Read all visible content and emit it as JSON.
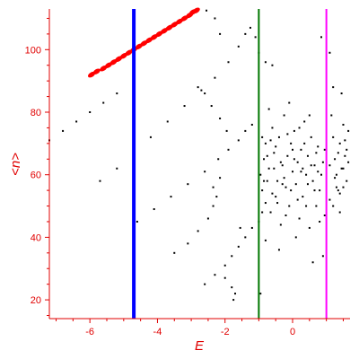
{
  "chart_data": {
    "type": "scatter",
    "xlabel": "E",
    "ylabel": "<n>",
    "xlim": [
      -7.2,
      1.7
    ],
    "ylim": [
      14,
      113
    ],
    "xticks": [
      -6,
      -4,
      -2,
      0
    ],
    "yticks": [
      20,
      40,
      60,
      80,
      100
    ],
    "grid": false,
    "vertical_lines": [
      {
        "x": -4.7,
        "color": "#0000ff"
      },
      {
        "x": -1.0,
        "color": "#007700"
      },
      {
        "x": 1.0,
        "color": "#ff00ff"
      }
    ],
    "series": [
      {
        "color": "#ff0000",
        "marker": "dense-band",
        "points": [
          [
            -5.95,
            92
          ],
          [
            -5.8,
            93
          ],
          [
            -5.6,
            94
          ],
          [
            -5.45,
            95
          ],
          [
            -5.3,
            96
          ],
          [
            -5.15,
            97
          ],
          [
            -5.0,
            98
          ],
          [
            -4.85,
            99
          ],
          [
            -4.7,
            100
          ],
          [
            -4.55,
            101
          ],
          [
            -4.4,
            102
          ],
          [
            -4.25,
            103
          ],
          [
            -4.1,
            104
          ],
          [
            -3.95,
            105
          ],
          [
            -3.8,
            106
          ],
          [
            -3.65,
            107
          ],
          [
            -3.5,
            108
          ],
          [
            -3.35,
            109
          ],
          [
            -3.2,
            110
          ],
          [
            -3.05,
            111
          ],
          [
            -2.95,
            112
          ],
          [
            -2.85,
            112.5
          ]
        ]
      },
      {
        "color": "#000000",
        "marker": "dot",
        "points": [
          [
            -7.2,
            71
          ],
          [
            -6.8,
            74
          ],
          [
            -6.4,
            77
          ],
          [
            -6.0,
            80
          ],
          [
            -5.6,
            83
          ],
          [
            -5.2,
            86
          ],
          [
            -2.55,
            112.5
          ],
          [
            -2.3,
            110
          ],
          [
            -2.15,
            105
          ],
          [
            -5.7,
            58
          ],
          [
            -5.2,
            62
          ],
          [
            -4.7,
            67
          ],
          [
            -4.2,
            72
          ],
          [
            -3.7,
            77
          ],
          [
            -3.2,
            82
          ],
          [
            -2.7,
            87
          ],
          [
            -2.3,
            91
          ],
          [
            -1.9,
            96
          ],
          [
            -1.6,
            101
          ],
          [
            -1.4,
            105
          ],
          [
            -1.25,
            107
          ],
          [
            -1.1,
            104
          ],
          [
            -1.0,
            99
          ],
          [
            -0.8,
            96
          ],
          [
            -0.6,
            95
          ],
          [
            -4.6,
            45
          ],
          [
            -4.1,
            49
          ],
          [
            -3.6,
            53
          ],
          [
            -3.1,
            57
          ],
          [
            -2.6,
            61
          ],
          [
            -2.2,
            65
          ],
          [
            -1.9,
            68
          ],
          [
            -1.6,
            71
          ],
          [
            -1.4,
            74
          ],
          [
            -1.2,
            76
          ],
          [
            -2.8,
            88
          ],
          [
            -2.6,
            86
          ],
          [
            -2.4,
            82
          ],
          [
            -2.15,
            78
          ],
          [
            -1.95,
            74
          ],
          [
            -3.5,
            35
          ],
          [
            -3.1,
            38
          ],
          [
            -2.8,
            42
          ],
          [
            -2.5,
            46
          ],
          [
            -2.35,
            50
          ],
          [
            -2.25,
            53
          ],
          [
            -2.35,
            56
          ],
          [
            -2.15,
            59
          ],
          [
            -2.6,
            25
          ],
          [
            -2.3,
            28
          ],
          [
            -2.0,
            31
          ],
          [
            -1.8,
            34
          ],
          [
            -1.6,
            37
          ],
          [
            -1.4,
            40
          ],
          [
            -1.2,
            43
          ],
          [
            -1.0,
            45
          ],
          [
            -0.9,
            48
          ],
          [
            -0.8,
            51
          ],
          [
            -2.0,
            27
          ],
          [
            -1.8,
            24
          ],
          [
            -1.7,
            22
          ],
          [
            -1.75,
            20
          ],
          [
            -1.55,
            43
          ],
          [
            -0.95,
            22
          ],
          [
            -0.95,
            60
          ],
          [
            -0.9,
            55
          ],
          [
            -0.85,
            65
          ],
          [
            -0.8,
            70
          ],
          [
            -0.75,
            58
          ],
          [
            -0.7,
            62
          ],
          [
            -0.65,
            48
          ],
          [
            -0.6,
            75
          ],
          [
            -0.55,
            67
          ],
          [
            -0.5,
            53
          ],
          [
            -0.45,
            58
          ],
          [
            -0.4,
            72
          ],
          [
            -0.35,
            44
          ],
          [
            -0.3,
            63
          ],
          [
            -0.25,
            79
          ],
          [
            -0.2,
            56
          ],
          [
            -0.15,
            66
          ],
          [
            -0.1,
            50
          ],
          [
            -0.05,
            70
          ],
          [
            0.0,
            61
          ],
          [
            0.05,
            74
          ],
          [
            0.1,
            57
          ],
          [
            0.15,
            64
          ],
          [
            0.2,
            46
          ],
          [
            0.25,
            68
          ],
          [
            0.3,
            53
          ],
          [
            0.35,
            77
          ],
          [
            0.4,
            60
          ],
          [
            0.45,
            66
          ],
          [
            0.5,
            43
          ],
          [
            0.55,
            72
          ],
          [
            0.6,
            58
          ],
          [
            0.65,
            63
          ],
          [
            0.7,
            50
          ],
          [
            0.75,
            69
          ],
          [
            0.8,
            55
          ],
          [
            0.85,
            104
          ],
          [
            0.9,
            64
          ],
          [
            0.95,
            47
          ],
          [
            -0.9,
            72
          ],
          [
            -0.8,
            39
          ],
          [
            -0.7,
            81
          ],
          [
            -0.6,
            54
          ],
          [
            -0.5,
            69
          ],
          [
            -0.4,
            36
          ],
          [
            -0.3,
            57
          ],
          [
            -0.2,
            47
          ],
          [
            -0.1,
            83
          ],
          [
            0.0,
            68
          ],
          [
            0.1,
            40
          ],
          [
            0.2,
            75
          ],
          [
            0.3,
            62
          ],
          [
            0.4,
            50
          ],
          [
            0.5,
            79
          ],
          [
            0.6,
            32
          ],
          [
            0.7,
            67
          ],
          [
            0.8,
            45
          ],
          [
            0.9,
            34
          ],
          [
            -0.85,
            58
          ],
          [
            -0.75,
            66
          ],
          [
            -0.65,
            71
          ],
          [
            -0.55,
            62
          ],
          [
            -0.45,
            51
          ],
          [
            -0.35,
            64
          ],
          [
            -0.25,
            59
          ],
          [
            -0.15,
            73
          ],
          [
            -0.05,
            55
          ],
          [
            0.05,
            65
          ],
          [
            0.15,
            52
          ],
          [
            0.25,
            61
          ],
          [
            0.35,
            70
          ],
          [
            0.45,
            57
          ],
          [
            0.55,
            63
          ],
          [
            0.65,
            55
          ],
          [
            0.75,
            61
          ],
          [
            0.85,
            60
          ],
          [
            0.95,
            68
          ],
          [
            1.1,
            99
          ],
          [
            1.15,
            79
          ],
          [
            1.2,
            72
          ],
          [
            1.25,
            65
          ],
          [
            1.3,
            60
          ],
          [
            1.35,
            55
          ],
          [
            1.4,
            70
          ],
          [
            1.45,
            86
          ],
          [
            1.5,
            76
          ],
          [
            1.55,
            66
          ],
          [
            1.6,
            58
          ],
          [
            1.65,
            74
          ],
          [
            1.1,
            52
          ],
          [
            1.2,
            50
          ],
          [
            1.3,
            56
          ],
          [
            1.4,
            54
          ],
          [
            1.5,
            62
          ],
          [
            1.6,
            68
          ],
          [
            1.1,
            63
          ],
          [
            1.25,
            59
          ],
          [
            1.35,
            67
          ],
          [
            1.45,
            62
          ],
          [
            1.55,
            71
          ],
          [
            1.65,
            64
          ],
          [
            1.2,
            88
          ],
          [
            1.5,
            56
          ],
          [
            1.4,
            48
          ]
        ]
      }
    ]
  }
}
